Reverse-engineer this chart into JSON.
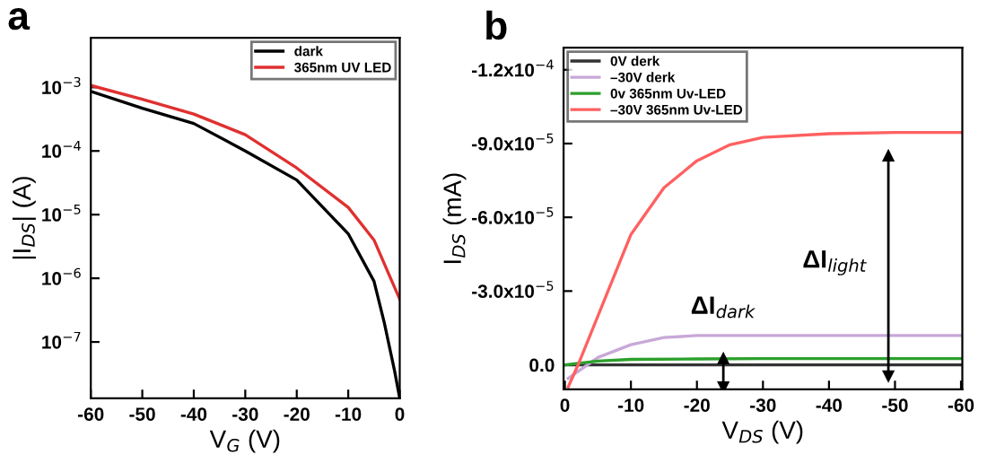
{
  "chart_data": [
    {
      "type": "line",
      "title": "a",
      "xlabel": "V$_{G}$ (V)",
      "ylabel": "|I$_{DS}$| (A)",
      "log": "y",
      "xlim": [
        -60,
        0
      ],
      "xticks": [
        -60,
        -50,
        -40,
        -30,
        -20,
        -10,
        0
      ],
      "ylim": [
        1.3e-08,
        0.006
      ],
      "yticks": [
        {
          "value": 0.001,
          "label": "10$^{−3}$"
        },
        {
          "value": 0.0001,
          "label": "10$^{−4}$"
        },
        {
          "value": 1e-05,
          "label": "10$^{−5}$"
        },
        {
          "value": 1e-06,
          "label": "10$^{−6}$"
        },
        {
          "value": 1e-07,
          "label": "10$^{−7}$"
        }
      ],
      "legend": "top right",
      "grid": false,
      "x": [
        -60,
        -50,
        -40,
        -30,
        -20,
        -10,
        -5,
        -3,
        -1,
        0
      ],
      "series": [
        {
          "name": "dark",
          "color": "#000000",
          "values": [
            0.00086,
            0.00047,
            0.00027,
            0.0001,
            3.5e-05,
            5e-06,
            9e-07,
            2e-07,
            3.5e-08,
            1.3e-08
          ]
        },
        {
          "name": "365nm UV LED",
          "color": "#e03030",
          "x": [
            -60,
            -50,
            -40,
            -30,
            -20,
            -10,
            -5,
            -2,
            0
          ],
          "values": [
            0.00107,
            0.00065,
            0.00038,
            0.00018,
            5.4e-05,
            1.3e-05,
            4e-06,
            1.1e-06,
            4.7e-07
          ]
        }
      ]
    },
    {
      "type": "line",
      "title": "b",
      "xlabel": "V$_{DS}$ (V)",
      "ylabel": "I$_{DS}$ (mA)",
      "xlim": [
        0.2,
        -60.2
      ],
      "xticks": [
        0,
        -10,
        -20,
        -30,
        -40,
        -50,
        -60
      ],
      "ylim": [
        1e-05,
        -0.000129
      ],
      "yticks": [
        {
          "value": -0.00012,
          "label": "-1.2x10$^{−4}$"
        },
        {
          "value": -9e-05,
          "label": "-9.0x10$^{−5}$"
        },
        {
          "value": -6e-05,
          "label": "-6.0x10$^{−5}$"
        },
        {
          "value": -3e-05,
          "label": "-3.0x10$^{−5}$"
        },
        {
          "value": 0,
          "label": "0.0"
        }
      ],
      "legend": "top left",
      "grid": false,
      "annotations": [
        "ΔI$_{light}$",
        "ΔI$_{dark}$"
      ],
      "series": [
        {
          "name": "0V derk",
          "color": "#333333",
          "x": [
            0,
            -10,
            -20,
            -30,
            -40,
            -50,
            -60
          ],
          "values": [
            0,
            0,
            0,
            0,
            0,
            0,
            0
          ]
        },
        {
          "name": "–30V derk",
          "color": "#c8a8d8",
          "x": [
            -0.5,
            -5,
            -10,
            -15,
            -20,
            -30,
            -40,
            -50,
            -60
          ],
          "values": [
            5.5e-06,
            -3e-06,
            -8.2e-06,
            -1.11e-05,
            -1.19e-05,
            -1.19e-05,
            -1.19e-05,
            -1.19e-05,
            -1.19e-05
          ]
        },
        {
          "name": "0v 365nm Uv-LED",
          "color": "#2ca02c",
          "x": [
            0,
            -5,
            -10,
            -20,
            -30,
            -40,
            -50,
            -60
          ],
          "values": [
            0,
            -1.5e-06,
            -2.2e-06,
            -2.4e-06,
            -2.5e-06,
            -2.5e-06,
            -2.5e-06,
            -2.5e-06
          ]
        },
        {
          "name": "–30V 365nm Uv-LED",
          "color": "#ff6060",
          "x": [
            -0.5,
            -2,
            -10,
            -15,
            -20,
            -25,
            -30,
            -40,
            -50,
            -60
          ],
          "values": [
            9e-06,
            0,
            -5.3e-05,
            -7.2e-05,
            -8.3e-05,
            -8.95e-05,
            -9.25e-05,
            -9.4e-05,
            -9.45e-05,
            -9.45e-05
          ]
        },
        {
          "type": "line",
          "color": "#000000",
          "marker": "triangle",
          "x": [
            -49,
            -49
          ],
          "values": [
            -8.5e-05,
            4.5e-06
          ]
        },
        {
          "type": "line",
          "color": "#000000",
          "marker": "triangle",
          "x": [
            -24,
            -24
          ],
          "values": [
            -2.5e-06,
            9e-06
          ]
        }
      ]
    }
  ]
}
